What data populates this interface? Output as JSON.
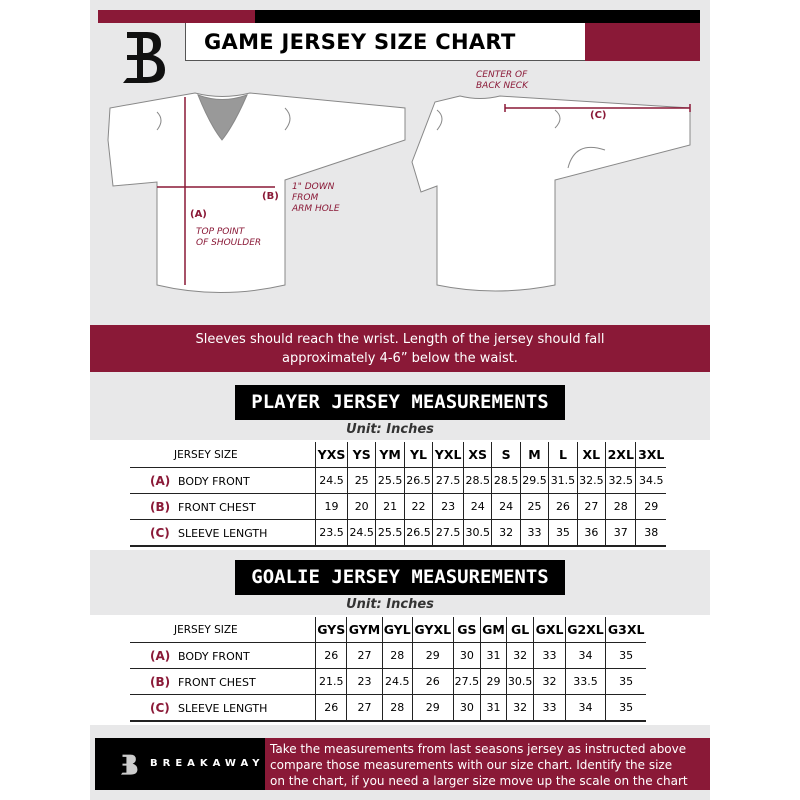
{
  "header": {
    "title": "GAME JERSEY SIZE CHART",
    "logo_letter": "B"
  },
  "diagram": {
    "center_back_neck": [
      "CENTER OF",
      "BACK NECK"
    ],
    "label_a": "(A)",
    "label_b": "(B)",
    "label_c": "(C)",
    "top_point": [
      "TOP POINT",
      "OF SHOULDER"
    ],
    "one_inch_down": [
      "1\" DOWN",
      "FROM",
      "ARM HOLE"
    ]
  },
  "notice": [
    "Sleeves should reach the wrist. Length of the jersey should fall",
    "approximately 4-6” below the waist."
  ],
  "player": {
    "title": "PLAYER JERSEY MEASUREMENTS",
    "unit": "Unit: Inches",
    "header_label": "JERSEY SIZE",
    "sizes": [
      "YXS",
      "YS",
      "YM",
      "YL",
      "YXL",
      "XS",
      "S",
      "M",
      "L",
      "XL",
      "2XL",
      "3XL"
    ],
    "rows": [
      {
        "letter": "(A)",
        "label": "BODY FRONT",
        "values": [
          "24.5",
          "25",
          "25.5",
          "26.5",
          "27.5",
          "28.5",
          "28.5",
          "29.5",
          "31.5",
          "32.5",
          "32.5",
          "34.5"
        ]
      },
      {
        "letter": "(B)",
        "label": "FRONT CHEST",
        "values": [
          "19",
          "20",
          "21",
          "22",
          "23",
          "24",
          "24",
          "25",
          "26",
          "27",
          "28",
          "29"
        ]
      },
      {
        "letter": "(C)",
        "label": "SLEEVE LENGTH",
        "values": [
          "23.5",
          "24.5",
          "25.5",
          "26.5",
          "27.5",
          "30.5",
          "32",
          "33",
          "35",
          "36",
          "37",
          "38"
        ]
      }
    ]
  },
  "goalie": {
    "title": "GOALIE JERSEY MEASUREMENTS",
    "unit": "Unit: Inches",
    "header_label": "JERSEY SIZE",
    "sizes": [
      "GYS",
      "GYM",
      "GYL",
      "GYXL",
      "GS",
      "GM",
      "GL",
      "GXL",
      "G2XL",
      "G3XL"
    ],
    "rows": [
      {
        "letter": "(A)",
        "label": "BODY FRONT",
        "values": [
          "26",
          "27",
          "28",
          "29",
          "30",
          "31",
          "32",
          "33",
          "34",
          "35"
        ]
      },
      {
        "letter": "(B)",
        "label": "FRONT CHEST",
        "values": [
          "21.5",
          "23",
          "24.5",
          "26",
          "27.5",
          "29",
          "30.5",
          "32",
          "33.5",
          "35"
        ]
      },
      {
        "letter": "(C)",
        "label": "SLEEVE LENGTH",
        "values": [
          "26",
          "27",
          "28",
          "29",
          "30",
          "31",
          "32",
          "33",
          "34",
          "35"
        ]
      }
    ]
  },
  "footer": {
    "brand": "BREAKAWAY",
    "text": [
      "Take the measurements from last seasons jersey as instructed above",
      "compare those measurements  with our size chart. Identify the size",
      "on the chart, if you need a larger size move up the scale on the chart"
    ]
  },
  "colors": {
    "maroon": "#8a1937",
    "black": "#000000",
    "background": "#e8e8e9"
  }
}
